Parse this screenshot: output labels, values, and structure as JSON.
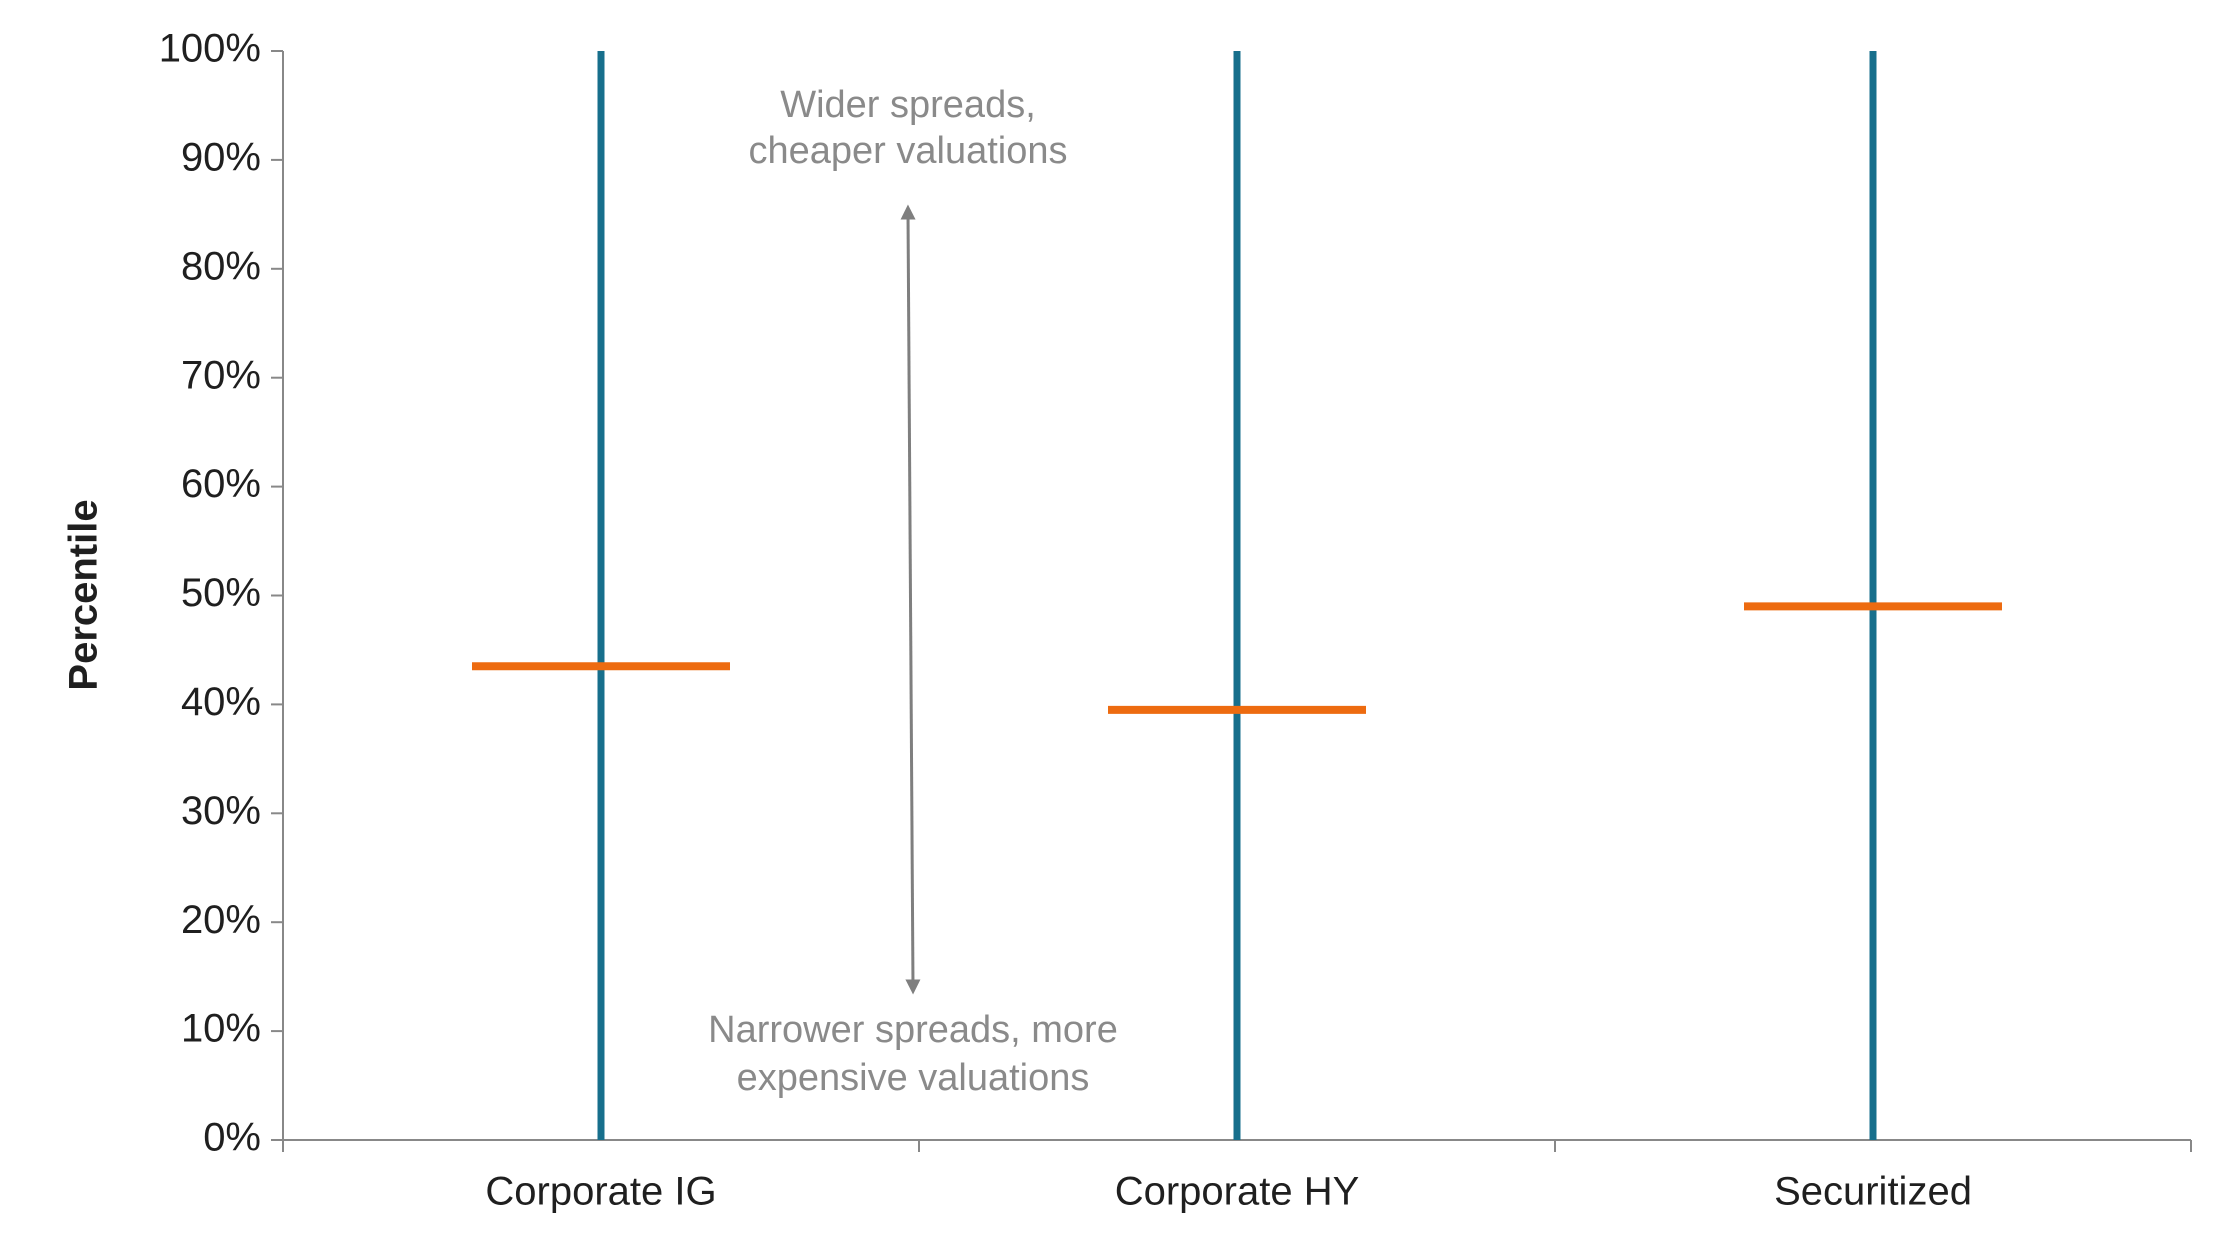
{
  "chart_data": {
    "type": "range",
    "y_axis_label": "Percentile",
    "categories": [
      "Corporate IG",
      "Corporate HY",
      "Securitized"
    ],
    "low": [
      0,
      0,
      0
    ],
    "high": [
      100,
      100,
      100
    ],
    "values": [
      43.5,
      39.5,
      49
    ],
    "range_color": "#176f8c",
    "marker_color": "#ed6b10",
    "ylim": [
      0,
      100
    ],
    "yticks": [
      {
        "value": 0,
        "label": "0%"
      },
      {
        "value": 10,
        "label": "10%"
      },
      {
        "value": 20,
        "label": "20%"
      },
      {
        "value": 30,
        "label": "30%"
      },
      {
        "value": 40,
        "label": "40%"
      },
      {
        "value": 50,
        "label": "50%"
      },
      {
        "value": 60,
        "label": "60%"
      },
      {
        "value": 70,
        "label": "70%"
      },
      {
        "value": 80,
        "label": "80%"
      },
      {
        "value": 90,
        "label": "90%"
      },
      {
        "value": 100,
        "label": "100%"
      }
    ],
    "grid": false,
    "annotations": [
      [
        "Wider spreads,",
        "cheaper valuations"
      ],
      [
        "Narrower spreads, more",
        "expensive valuations"
      ]
    ]
  }
}
